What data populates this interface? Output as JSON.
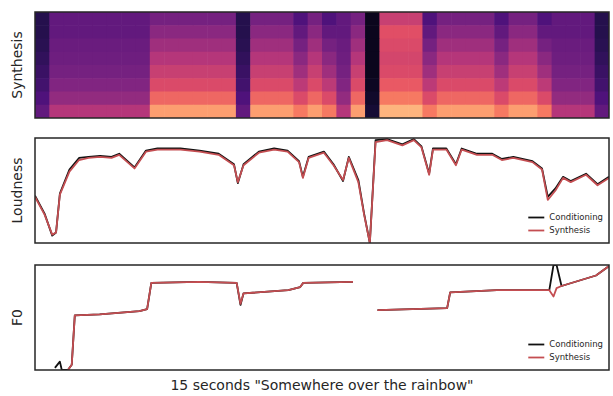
{
  "chart_data": [
    {
      "type": "heatmap",
      "y_label": "Synthesis",
      "xlim": [
        0,
        15
      ],
      "zlim": [
        0,
        1
      ],
      "tick_labels": false,
      "cells": [
        [
          0.15,
          0.3,
          0.3,
          0.3,
          0.3,
          0.3,
          0.3,
          0.3,
          0.35,
          0.35,
          0.35,
          0.35,
          0.35,
          0.35,
          0.15,
          0.35,
          0.35,
          0.35,
          0.25,
          0.35,
          0.25,
          0.3,
          0.35,
          0.05,
          0.55,
          0.55,
          0.55,
          0.25,
          0.35,
          0.35,
          0.35,
          0.35,
          0.25,
          0.35,
          0.35,
          0.25,
          0.3,
          0.3,
          0.3,
          0.15
        ],
        [
          0.15,
          0.3,
          0.3,
          0.3,
          0.3,
          0.3,
          0.3,
          0.3,
          0.4,
          0.4,
          0.4,
          0.4,
          0.4,
          0.4,
          0.15,
          0.4,
          0.4,
          0.4,
          0.3,
          0.4,
          0.3,
          0.3,
          0.4,
          0.05,
          0.62,
          0.62,
          0.62,
          0.3,
          0.4,
          0.4,
          0.4,
          0.4,
          0.3,
          0.4,
          0.4,
          0.3,
          0.3,
          0.3,
          0.3,
          0.15
        ],
        [
          0.16,
          0.32,
          0.32,
          0.32,
          0.32,
          0.32,
          0.32,
          0.32,
          0.45,
          0.45,
          0.45,
          0.45,
          0.45,
          0.45,
          0.16,
          0.45,
          0.45,
          0.45,
          0.35,
          0.45,
          0.35,
          0.32,
          0.45,
          0.05,
          0.6,
          0.6,
          0.6,
          0.35,
          0.45,
          0.45,
          0.45,
          0.45,
          0.35,
          0.45,
          0.45,
          0.35,
          0.32,
          0.32,
          0.32,
          0.16
        ],
        [
          0.18,
          0.33,
          0.33,
          0.33,
          0.33,
          0.33,
          0.33,
          0.33,
          0.5,
          0.5,
          0.5,
          0.5,
          0.5,
          0.5,
          0.18,
          0.5,
          0.5,
          0.5,
          0.4,
          0.5,
          0.4,
          0.33,
          0.5,
          0.05,
          0.58,
          0.58,
          0.58,
          0.4,
          0.5,
          0.5,
          0.5,
          0.5,
          0.4,
          0.5,
          0.5,
          0.4,
          0.33,
          0.33,
          0.33,
          0.18
        ],
        [
          0.2,
          0.35,
          0.35,
          0.35,
          0.35,
          0.35,
          0.35,
          0.35,
          0.55,
          0.55,
          0.55,
          0.55,
          0.55,
          0.55,
          0.2,
          0.55,
          0.55,
          0.55,
          0.45,
          0.55,
          0.45,
          0.35,
          0.55,
          0.05,
          0.6,
          0.6,
          0.6,
          0.45,
          0.55,
          0.55,
          0.55,
          0.55,
          0.45,
          0.55,
          0.55,
          0.45,
          0.35,
          0.35,
          0.35,
          0.2
        ],
        [
          0.22,
          0.38,
          0.38,
          0.38,
          0.38,
          0.38,
          0.38,
          0.38,
          0.6,
          0.6,
          0.6,
          0.6,
          0.6,
          0.6,
          0.22,
          0.6,
          0.6,
          0.6,
          0.52,
          0.6,
          0.52,
          0.38,
          0.6,
          0.06,
          0.65,
          0.65,
          0.65,
          0.52,
          0.6,
          0.6,
          0.6,
          0.6,
          0.52,
          0.6,
          0.6,
          0.52,
          0.38,
          0.38,
          0.38,
          0.22
        ],
        [
          0.25,
          0.42,
          0.42,
          0.42,
          0.42,
          0.42,
          0.42,
          0.42,
          0.68,
          0.68,
          0.68,
          0.68,
          0.68,
          0.68,
          0.25,
          0.68,
          0.68,
          0.68,
          0.6,
          0.68,
          0.6,
          0.42,
          0.68,
          0.08,
          0.72,
          0.72,
          0.72,
          0.6,
          0.68,
          0.68,
          0.68,
          0.68,
          0.6,
          0.68,
          0.68,
          0.6,
          0.42,
          0.42,
          0.42,
          0.25
        ],
        [
          0.3,
          0.5,
          0.5,
          0.5,
          0.5,
          0.5,
          0.5,
          0.5,
          0.8,
          0.8,
          0.8,
          0.8,
          0.8,
          0.8,
          0.3,
          0.8,
          0.8,
          0.8,
          0.72,
          0.8,
          0.72,
          0.5,
          0.8,
          0.1,
          0.85,
          0.85,
          0.85,
          0.72,
          0.8,
          0.8,
          0.8,
          0.8,
          0.72,
          0.8,
          0.8,
          0.72,
          0.5,
          0.5,
          0.5,
          0.3
        ]
      ]
    },
    {
      "type": "line",
      "y_label": "Loudness",
      "xlim": [
        0,
        15
      ],
      "ylim": [
        0,
        1
      ],
      "legend": "lower right",
      "tick_labels": false,
      "x": [
        0,
        0.25,
        0.45,
        0.55,
        0.65,
        0.9,
        1.15,
        1.4,
        1.7,
        2.0,
        2.2,
        2.6,
        2.9,
        3.2,
        3.8,
        4.3,
        4.8,
        5.2,
        5.3,
        5.45,
        5.85,
        6.25,
        6.6,
        6.9,
        7.0,
        7.15,
        7.55,
        7.8,
        8.05,
        8.2,
        8.45,
        8.6,
        8.75,
        8.9,
        9.2,
        9.6,
        9.9,
        10.1,
        10.3,
        10.4,
        10.75,
        11.0,
        11.15,
        11.55,
        11.95,
        12.2,
        12.5,
        13.0,
        13.25,
        13.4,
        13.6,
        13.8,
        14.0,
        14.4,
        14.7,
        15.0
      ],
      "series": [
        {
          "name": "Conditioning",
          "color": "#111111",
          "values": [
            0.45,
            0.28,
            0.07,
            0.1,
            0.47,
            0.7,
            0.81,
            0.82,
            0.83,
            0.82,
            0.85,
            0.72,
            0.88,
            0.9,
            0.9,
            0.88,
            0.85,
            0.75,
            0.57,
            0.75,
            0.87,
            0.9,
            0.88,
            0.78,
            0.63,
            0.82,
            0.87,
            0.75,
            0.59,
            0.82,
            0.6,
            0.28,
            0.0,
            0.98,
            0.99,
            0.94,
            0.99,
            0.92,
            0.66,
            0.9,
            0.9,
            0.75,
            0.9,
            0.85,
            0.85,
            0.8,
            0.82,
            0.78,
            0.71,
            0.44,
            0.52,
            0.63,
            0.59,
            0.66,
            0.56,
            0.63
          ]
        },
        {
          "name": "Synthesis",
          "color": "#c44e52",
          "values": [
            0.44,
            0.27,
            0.08,
            0.1,
            0.46,
            0.68,
            0.79,
            0.81,
            0.82,
            0.81,
            0.84,
            0.71,
            0.87,
            0.89,
            0.89,
            0.87,
            0.84,
            0.74,
            0.58,
            0.74,
            0.86,
            0.89,
            0.87,
            0.77,
            0.62,
            0.81,
            0.86,
            0.74,
            0.6,
            0.81,
            0.58,
            0.27,
            0.0,
            0.96,
            0.98,
            0.93,
            0.98,
            0.91,
            0.65,
            0.89,
            0.89,
            0.74,
            0.89,
            0.84,
            0.84,
            0.79,
            0.81,
            0.77,
            0.7,
            0.41,
            0.5,
            0.62,
            0.58,
            0.65,
            0.55,
            0.62
          ]
        }
      ]
    },
    {
      "type": "line",
      "y_label": "F0",
      "x_label": "15 seconds \"Somewhere over the rainbow\"",
      "xlim": [
        0,
        15
      ],
      "ylim": [
        0,
        1
      ],
      "legend": "lower right",
      "tick_labels": false,
      "x": [
        0.52,
        0.65,
        0.7,
        0.86,
        0.96,
        1.04,
        1.69,
        2.73,
        2.93,
        3.04,
        4.28,
        5.27,
        5.37,
        5.45,
        6.62,
        6.93,
        7.01,
        8.31,
        8.6,
        8.95,
        10.77,
        10.85,
        12.07,
        13.44,
        13.55,
        13.63,
        13.76,
        14.66,
        15.0
      ],
      "series": [
        {
          "name": "Conditioning",
          "color": "#111111",
          "values": [
            0.02,
            0.08,
            0.0,
            0.0,
            0.05,
            0.52,
            0.53,
            0.56,
            0.58,
            0.83,
            0.84,
            0.83,
            0.62,
            0.73,
            0.76,
            0.79,
            0.83,
            0.84,
            null,
            0.57,
            0.59,
            0.74,
            0.76,
            0.76,
            1.0,
            1.0,
            0.8,
            0.9,
            0.99
          ]
        },
        {
          "name": "Synthesis",
          "color": "#c44e52",
          "values": [
            null,
            null,
            null,
            0.0,
            0.05,
            0.52,
            0.53,
            0.56,
            0.58,
            0.83,
            0.84,
            0.83,
            0.63,
            0.73,
            0.76,
            0.79,
            0.83,
            0.84,
            null,
            0.57,
            0.59,
            0.74,
            0.76,
            0.76,
            0.7,
            0.78,
            0.8,
            0.9,
            0.99
          ]
        }
      ]
    }
  ]
}
